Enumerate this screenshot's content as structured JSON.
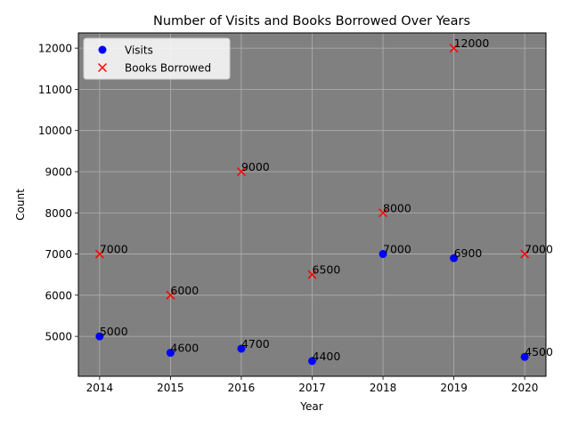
{
  "chart_data": {
    "type": "scatter",
    "title": "Number of Visits and Books Borrowed Over Years",
    "xlabel": "Year",
    "ylabel": "Count",
    "x": [
      2014,
      2015,
      2016,
      2017,
      2018,
      2019,
      2020
    ],
    "xlim": [
      2013.7,
      2020.3
    ],
    "ylim": [
      4030,
      12370
    ],
    "yticks": [
      5000,
      6000,
      7000,
      8000,
      9000,
      10000,
      11000,
      12000
    ],
    "grid": true,
    "legend_position": "top-left",
    "plot_background": "#808080",
    "series": [
      {
        "name": "Visits",
        "marker": "circle",
        "color": "#0000ff",
        "values": [
          5000,
          4600,
          4700,
          4400,
          7000,
          6900,
          4500
        ]
      },
      {
        "name": "Books Borrowed",
        "marker": "x",
        "color": "#ff0000",
        "values": [
          7000,
          6000,
          9000,
          6500,
          8000,
          12000,
          7000
        ]
      }
    ]
  }
}
